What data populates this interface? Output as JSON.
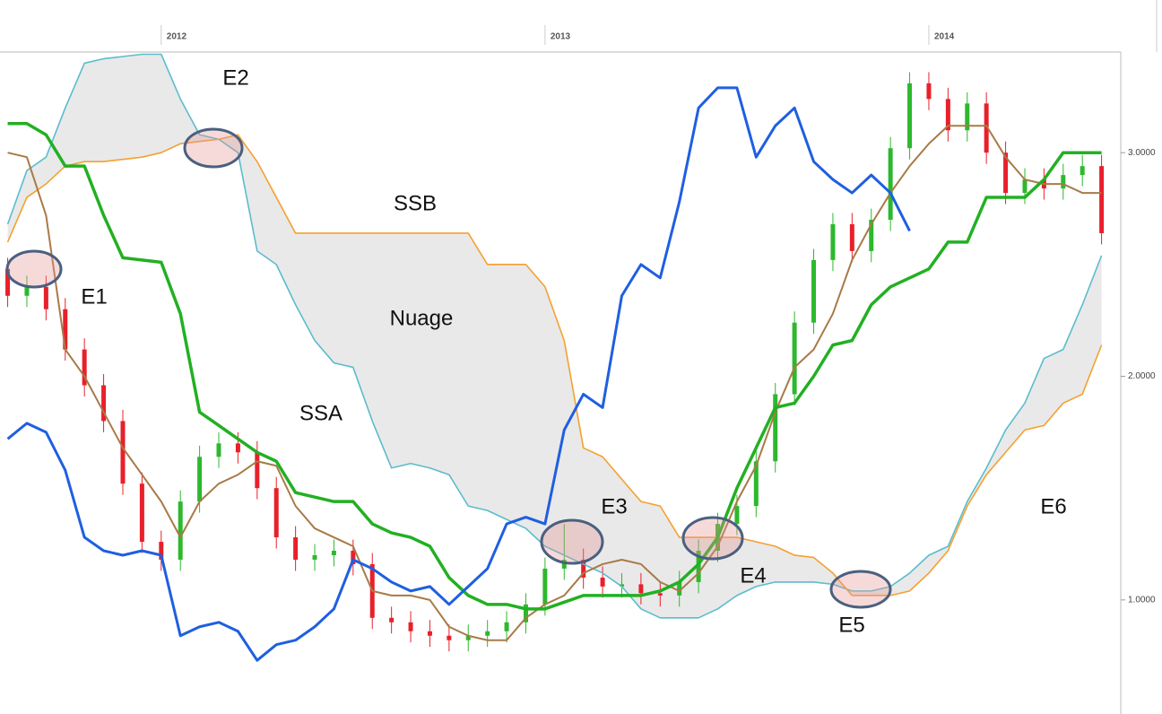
{
  "chart_data": {
    "type": "ichimoku",
    "x": [
      2011.6,
      2011.65,
      2011.7,
      2011.75,
      2011.8,
      2011.85,
      2011.9,
      2011.95,
      2012,
      2012.05,
      2012.1,
      2012.15,
      2012.2,
      2012.25,
      2012.3,
      2012.35,
      2012.4,
      2012.45,
      2012.5,
      2012.55,
      2012.6,
      2012.65,
      2012.7,
      2012.75,
      2012.8,
      2012.85,
      2012.9,
      2012.95,
      2013,
      2013.05,
      2013.1,
      2013.15,
      2013.2,
      2013.25,
      2013.3,
      2013.35,
      2013.4,
      2013.45,
      2013.5,
      2013.55,
      2013.6,
      2013.65,
      2013.7,
      2013.75,
      2013.8,
      2013.85,
      2013.9,
      2013.95,
      2014,
      2014.05,
      2014.1,
      2014.15,
      2014.2,
      2014.25,
      2014.3,
      2014.35,
      2014.4,
      2014.45
    ],
    "xlim": [
      2011.58,
      2014.5
    ],
    "xticks": [
      2012,
      2013,
      2014
    ],
    "ylim": [
      0.49,
      3.45
    ],
    "yticks": [
      {
        "value": 1,
        "label": "1.0000"
      },
      {
        "value": 2,
        "label": "2.0000"
      },
      {
        "value": 3,
        "label": "3.0000"
      }
    ],
    "candles": {
      "up_color": "#2db82d",
      "down_color": "#e8202a",
      "open": [
        2.48,
        2.36,
        2.4,
        2.3,
        2.12,
        1.96,
        1.8,
        1.52,
        1.26,
        1.18,
        1.44,
        1.64,
        1.7,
        1.66,
        1.5,
        1.28,
        1.18,
        1.2,
        1.22,
        1.16,
        0.92,
        0.9,
        0.86,
        0.84,
        0.82,
        0.84,
        0.86,
        0.9,
        0.98,
        1.14,
        1.18,
        1.1,
        1.06,
        1.07,
        1.03,
        1.02,
        1.08,
        1.22,
        1.34,
        1.42,
        1.62,
        1.92,
        2.24,
        2.52,
        2.68,
        2.56,
        2.7,
        3.02,
        3.31,
        3.24,
        3.1,
        3.22,
        3.0,
        2.82,
        2.88,
        2.84,
        2.9,
        2.94
      ],
      "high": [
        2.53,
        2.45,
        2.45,
        2.35,
        2.17,
        2.01,
        1.85,
        1.57,
        1.31,
        1.49,
        1.69,
        1.75,
        1.75,
        1.71,
        1.55,
        1.33,
        1.25,
        1.27,
        1.27,
        1.21,
        0.97,
        0.95,
        0.91,
        0.89,
        0.89,
        0.91,
        0.95,
        1.03,
        1.19,
        1.34,
        1.23,
        1.15,
        1.12,
        1.12,
        1.08,
        1.13,
        1.27,
        1.39,
        1.47,
        1.67,
        1.97,
        2.29,
        2.57,
        2.73,
        2.73,
        2.75,
        3.07,
        3.36,
        3.36,
        3.29,
        3.27,
        3.27,
        3.05,
        2.93,
        2.93,
        2.95,
        2.99,
        2.99
      ],
      "low": [
        2.31,
        2.31,
        2.25,
        2.07,
        1.91,
        1.75,
        1.47,
        1.21,
        1.13,
        1.13,
        1.39,
        1.59,
        1.61,
        1.45,
        1.23,
        1.13,
        1.13,
        1.15,
        1.11,
        0.87,
        0.85,
        0.81,
        0.79,
        0.77,
        0.77,
        0.79,
        0.81,
        0.85,
        0.93,
        1.09,
        1.05,
        1.01,
        1.01,
        0.98,
        0.97,
        0.97,
        1.03,
        1.17,
        1.29,
        1.37,
        1.57,
        1.87,
        2.19,
        2.47,
        2.51,
        2.51,
        2.65,
        2.97,
        3.19,
        3.05,
        3.05,
        2.95,
        2.77,
        2.77,
        2.79,
        2.79,
        2.85,
        2.59
      ],
      "close": [
        2.36,
        2.4,
        2.3,
        2.12,
        1.96,
        1.8,
        1.52,
        1.26,
        1.18,
        1.44,
        1.64,
        1.7,
        1.66,
        1.5,
        1.28,
        1.18,
        1.2,
        1.22,
        1.16,
        0.92,
        0.9,
        0.86,
        0.84,
        0.82,
        0.84,
        0.86,
        0.9,
        0.98,
        1.14,
        1.18,
        1.1,
        1.06,
        1.07,
        1.03,
        1.02,
        1.08,
        1.22,
        1.34,
        1.42,
        1.62,
        1.92,
        2.24,
        2.52,
        2.68,
        2.56,
        2.7,
        3.02,
        3.31,
        3.24,
        3.1,
        3.22,
        3.0,
        2.82,
        2.88,
        2.84,
        2.9,
        2.94,
        2.64
      ]
    },
    "cloud_color": "#e9e9e9",
    "series": [
      {
        "color": "#5bbccc",
        "values": [
          2.68,
          2.92,
          2.98,
          3.2,
          3.4,
          3.42,
          3.43,
          3.44,
          3.44,
          3.24,
          3.08,
          3.06,
          3.0,
          2.56,
          2.5,
          2.32,
          2.16,
          2.06,
          2.04,
          1.8,
          1.59,
          1.61,
          1.59,
          1.56,
          1.42,
          1.4,
          1.36,
          1.32,
          1.24,
          1.2,
          1.16,
          1.12,
          1.06,
          0.96,
          0.92,
          0.92,
          0.92,
          0.96,
          1.02,
          1.06,
          1.08,
          1.08,
          1.08,
          1.07,
          1.04,
          1.04,
          1.06,
          1.12,
          1.2,
          1.24,
          1.44,
          1.59,
          1.76,
          1.88,
          2.08,
          2.12,
          2.32,
          2.54
        ]
      },
      {
        "color": "#f5a030",
        "values": [
          2.6,
          2.8,
          2.86,
          2.94,
          2.96,
          2.96,
          2.97,
          2.98,
          3.0,
          3.04,
          3.05,
          3.06,
          3.08,
          2.96,
          2.8,
          2.64,
          2.64,
          2.64,
          2.64,
          2.64,
          2.64,
          2.64,
          2.64,
          2.64,
          2.64,
          2.5,
          2.5,
          2.5,
          2.4,
          2.16,
          1.68,
          1.64,
          1.54,
          1.44,
          1.42,
          1.28,
          1.28,
          1.28,
          1.28,
          1.26,
          1.24,
          1.2,
          1.19,
          1.12,
          1.02,
          1.02,
          1.02,
          1.04,
          1.12,
          1.22,
          1.42,
          1.56,
          1.66,
          1.76,
          1.78,
          1.88,
          1.92,
          2.14
        ]
      },
      {
        "color": "#a87a48",
        "values": [
          3.0,
          2.98,
          2.72,
          2.12,
          2.0,
          1.84,
          1.68,
          1.56,
          1.44,
          1.28,
          1.44,
          1.52,
          1.56,
          1.62,
          1.6,
          1.42,
          1.32,
          1.28,
          1.24,
          1.04,
          1.02,
          1.02,
          1.0,
          0.88,
          0.84,
          0.82,
          0.82,
          0.92,
          0.98,
          1.02,
          1.12,
          1.16,
          1.18,
          1.16,
          1.08,
          1.04,
          1.12,
          1.24,
          1.44,
          1.6,
          1.84,
          2.04,
          2.12,
          2.28,
          2.52,
          2.68,
          2.82,
          2.94,
          3.04,
          3.12,
          3.12,
          3.12,
          2.98,
          2.88,
          2.86,
          2.86,
          2.82,
          2.82
        ]
      },
      {
        "color": "#22b022",
        "values": [
          3.13,
          3.13,
          3.08,
          2.94,
          2.94,
          2.72,
          2.53,
          2.52,
          2.51,
          2.28,
          1.84,
          1.78,
          1.72,
          1.66,
          1.62,
          1.48,
          1.46,
          1.44,
          1.44,
          1.34,
          1.3,
          1.28,
          1.24,
          1.1,
          1.02,
          0.98,
          0.98,
          0.96,
          0.96,
          0.99,
          1.02,
          1.02,
          1.02,
          1.02,
          1.04,
          1.08,
          1.16,
          1.28,
          1.5,
          1.68,
          1.86,
          1.88,
          2.0,
          2.14,
          2.16,
          2.32,
          2.4,
          2.44,
          2.48,
          2.6,
          2.6,
          2.8,
          2.8,
          2.8,
          2.88,
          3.0,
          3.0,
          3.0
        ]
      },
      {
        "color": "#1f5fe0",
        "values": [
          1.72,
          1.79,
          1.75,
          1.58,
          1.28,
          1.22,
          1.2,
          1.22,
          1.2,
          0.84,
          0.88,
          0.9,
          0.86,
          0.73,
          0.8,
          0.82,
          0.88,
          0.96,
          1.18,
          1.14,
          1.08,
          1.04,
          1.06,
          0.98,
          1.06,
          1.14,
          1.34,
          1.37,
          1.34,
          1.76,
          1.92,
          1.86,
          2.36,
          2.5,
          2.44,
          2.78,
          3.2,
          3.29,
          3.29,
          2.98,
          3.12,
          3.2,
          2.96,
          2.88,
          2.82,
          2.9,
          2.82,
          2.65,
          null,
          null,
          null,
          null,
          null,
          null,
          null,
          null,
          null,
          null
        ]
      }
    ],
    "annotations": [
      "E2",
      "SSB",
      "E1",
      "Nuage",
      "SSA",
      "E3",
      "E6",
      "E4",
      "E5"
    ]
  }
}
